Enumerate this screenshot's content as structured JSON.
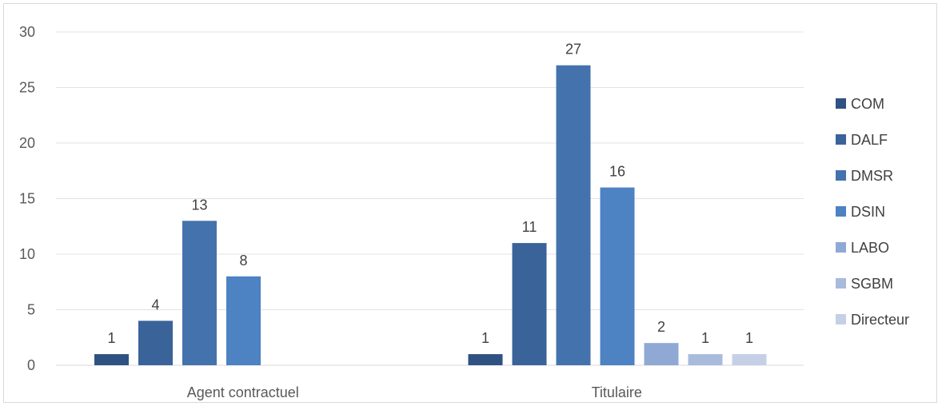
{
  "chart_data": {
    "type": "bar",
    "categories": [
      "Agent contractuel",
      "Titulaire"
    ],
    "series": [
      {
        "name": "COM",
        "values": [
          1,
          1
        ],
        "color": "#2f5282"
      },
      {
        "name": "DALF",
        "values": [
          4,
          11
        ],
        "color": "#3a6399"
      },
      {
        "name": "DMSR",
        "values": [
          13,
          27
        ],
        "color": "#4472ad"
      },
      {
        "name": "DSIN",
        "values": [
          8,
          16
        ],
        "color": "#4d82c3"
      },
      {
        "name": "LABO",
        "values": [
          null,
          2
        ],
        "color": "#8fa9d4"
      },
      {
        "name": "SGBM",
        "values": [
          null,
          1
        ],
        "color": "#a9bbdd"
      },
      {
        "name": "Directeur",
        "values": [
          null,
          1
        ],
        "color": "#c5d0e6"
      }
    ],
    "ylim": [
      0,
      30
    ],
    "yticks": [
      0,
      5,
      10,
      15,
      20,
      25,
      30
    ],
    "grid": true,
    "legend": "right",
    "title": "",
    "xlabel": "",
    "ylabel": ""
  }
}
